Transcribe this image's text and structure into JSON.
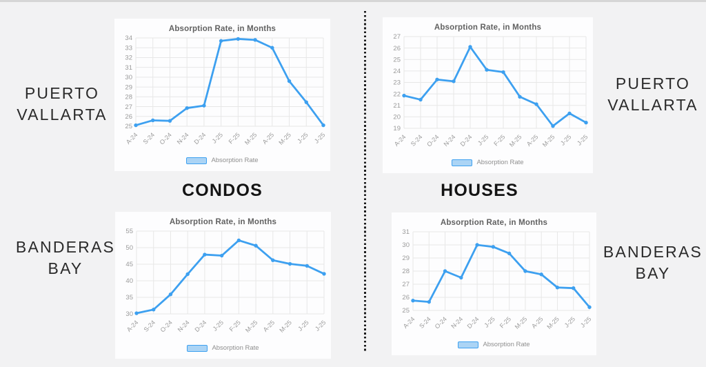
{
  "page": {
    "background_color": "#f2f2f3",
    "top_strip_color": "#d6d6d6",
    "divider_style": "vertical-dotted-black"
  },
  "colors": {
    "line": "#3da0f0",
    "marker": "#3da0f0",
    "legend_fill": "#abd4f5",
    "legend_border": "#3da0f0",
    "grid": "#e7e7e7",
    "tick": "#9a9a9a",
    "title": "#616161"
  },
  "column_labels": {
    "left": "CONDOS",
    "right": "HOUSES"
  },
  "region_labels": {
    "top_left": {
      "line1": "PUERTO",
      "line2": "VALLARTA"
    },
    "top_right": {
      "line1": "PUERTO",
      "line2": "VALLARTA"
    },
    "bottom_left": {
      "line1": "BANDERAS",
      "line2": "BAY"
    },
    "bottom_right": {
      "line1": "BANDERAS",
      "line2": "BAY"
    }
  },
  "chart_data": [
    {
      "type": "line",
      "region": "Puerto Vallarta",
      "property_type": "Condos",
      "title": "Absorption Rate, in Months",
      "legend": "Absorption Rate",
      "legend_position": "bottom",
      "grid": true,
      "categories": [
        "A-24",
        "S-24",
        "O-24",
        "N-24",
        "D-24",
        "J-25",
        "F-25",
        "M-25",
        "A-25",
        "M-25",
        "J-25",
        "J-25"
      ],
      "values": [
        25.1,
        25.6,
        25.55,
        26.85,
        27.1,
        33.7,
        33.9,
        33.8,
        33.0,
        29.6,
        27.45,
        25.1
      ],
      "ylim": [
        25,
        34
      ],
      "ytick_step": 1
    },
    {
      "type": "line",
      "region": "Puerto Vallarta",
      "property_type": "Houses",
      "title": "Absorption Rate, in Months",
      "legend": "Absorption Rate",
      "legend_position": "bottom",
      "grid": true,
      "categories": [
        "A-24",
        "S-24",
        "O-24",
        "N-24",
        "D-24",
        "J-25",
        "F-25",
        "M-25",
        "A-25",
        "M-25",
        "J-25",
        "J-25"
      ],
      "values": [
        21.85,
        21.5,
        23.25,
        23.1,
        26.1,
        24.1,
        23.9,
        21.75,
        21.1,
        19.2,
        20.3,
        19.5
      ],
      "ylim": [
        19,
        27
      ],
      "ytick_step": 1
    },
    {
      "type": "line",
      "region": "Banderas Bay",
      "property_type": "Condos",
      "title": "Absorption Rate, in Months",
      "legend": "Absorption Rate",
      "legend_position": "bottom",
      "grid": true,
      "categories": [
        "A-24",
        "S-24",
        "O-24",
        "N-24",
        "D-24",
        "J-25",
        "F-25",
        "M-25",
        "A-25",
        "M-25",
        "J-25",
        "J-25"
      ],
      "values": [
        30.2,
        31.3,
        35.9,
        42.0,
        47.9,
        47.6,
        52.2,
        50.6,
        46.2,
        45.1,
        44.5,
        42.1
      ],
      "ylim": [
        30,
        55
      ],
      "ytick_step": 5
    },
    {
      "type": "line",
      "region": "Banderas Bay",
      "property_type": "Houses",
      "title": "Absorption Rate, in Months",
      "legend": "Absorption Rate",
      "legend_position": "bottom",
      "grid": true,
      "categories": [
        "A-24",
        "S-24",
        "O-24",
        "N-24",
        "D-24",
        "J-25",
        "F-25",
        "M-25",
        "A-25",
        "M-25",
        "J-25",
        "J-25"
      ],
      "values": [
        25.75,
        25.65,
        28.0,
        27.5,
        30.0,
        29.85,
        29.35,
        28.0,
        27.75,
        26.75,
        26.7,
        25.25
      ],
      "ylim": [
        25,
        31
      ],
      "ytick_step": 1
    }
  ]
}
